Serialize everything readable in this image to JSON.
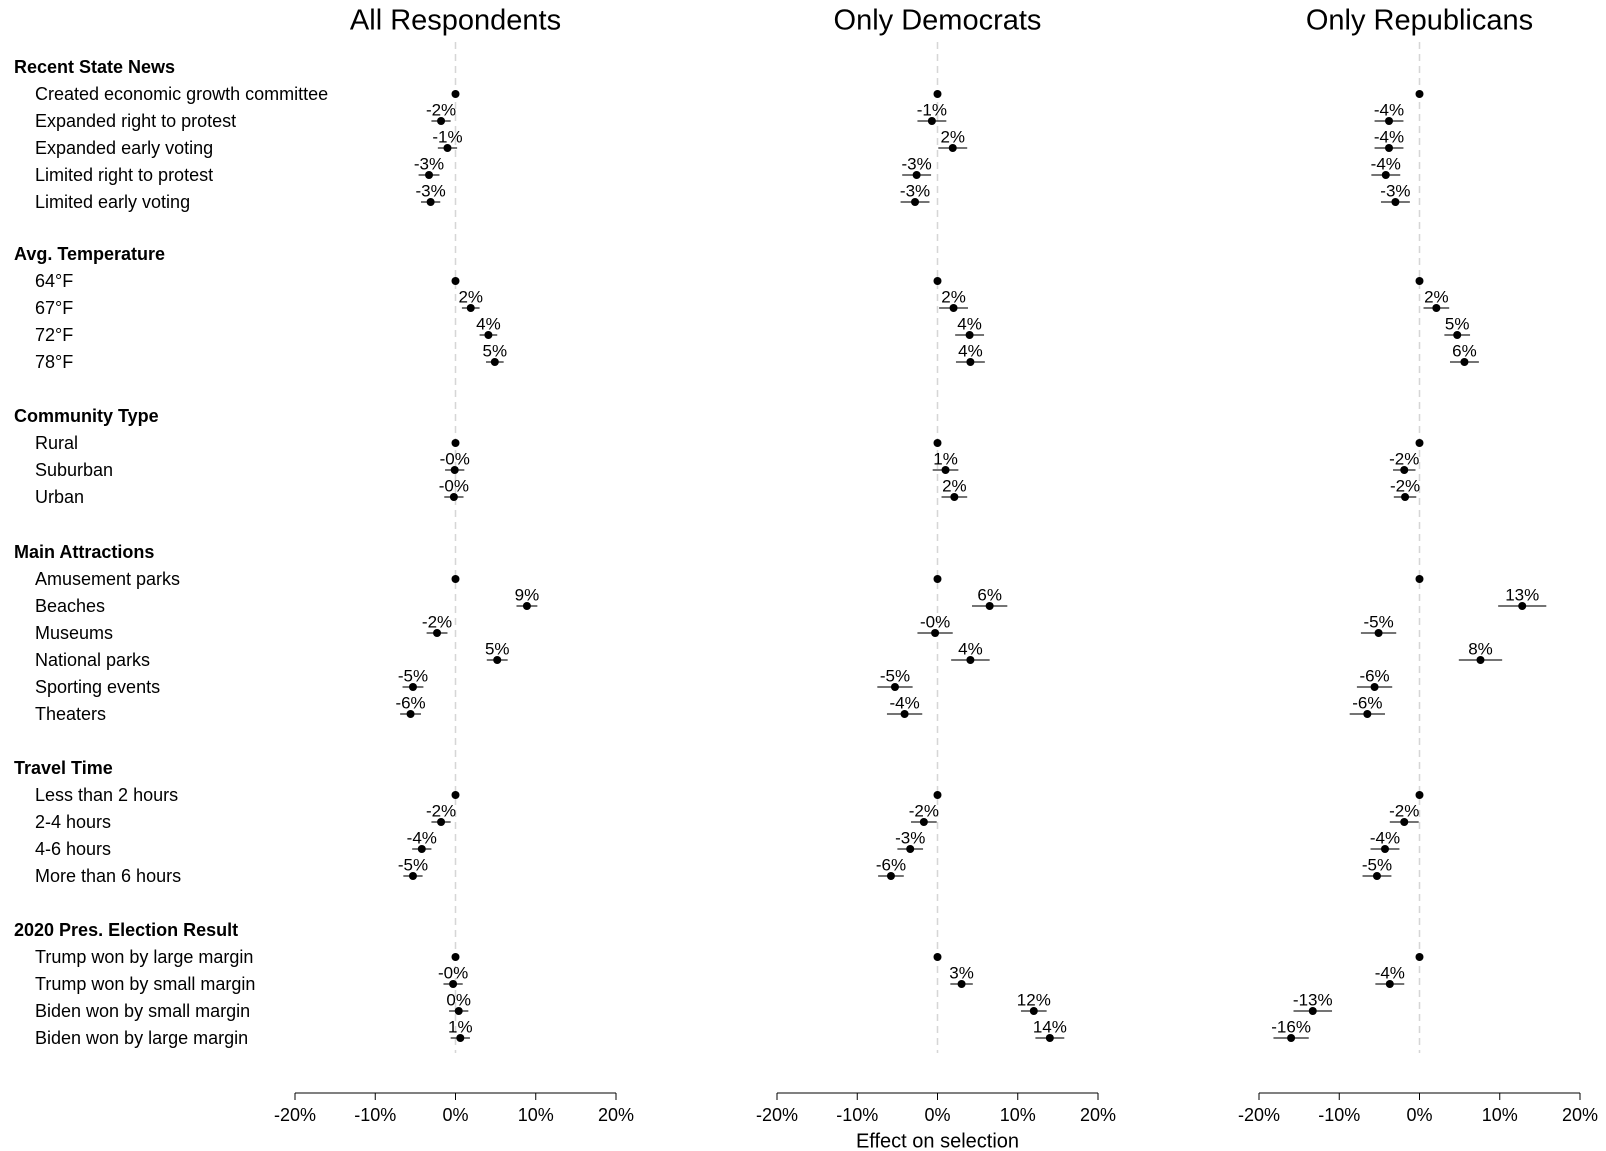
{
  "chart_data": {
    "type": "scatter",
    "description_style": "coefficient plot with 95% CI whiskers, three facets",
    "xlabel": "Effect on selection",
    "xlim": [
      -20,
      20
    ],
    "xticks": [
      -20,
      -10,
      0,
      10,
      20
    ],
    "xtick_labels": [
      "-20%",
      "-10%",
      "0%",
      "10%",
      "20%"
    ],
    "reference_line": 0,
    "grid": false,
    "groups": [
      {
        "label": "Recent State News",
        "levels": [
          "Created economic growth committee",
          "Expanded right to protest",
          "Expanded early voting",
          "Limited right to protest",
          "Limited early voting"
        ]
      },
      {
        "label": "Avg. Temperature",
        "levels": [
          "64°F",
          "67°F",
          "72°F",
          "78°F"
        ]
      },
      {
        "label": "Community Type",
        "levels": [
          "Rural",
          "Suburban",
          "Urban"
        ]
      },
      {
        "label": "Main Attractions",
        "levels": [
          "Amusement parks",
          "Beaches",
          "Museums",
          "National parks",
          "Sporting events",
          "Theaters"
        ]
      },
      {
        "label": "Travel Time",
        "levels": [
          "Less than 2 hours",
          "2-4 hours",
          "4-6 hours",
          "More than 6 hours"
        ]
      },
      {
        "label": "2020 Pres. Election Result",
        "levels": [
          "Trump won by large margin",
          "Trump won by small margin",
          "Biden won by small margin",
          "Biden won by large margin"
        ]
      }
    ],
    "panels": [
      {
        "title": "All Respondents",
        "estimates": [
          [
            0,
            -1.8,
            -1.0,
            -3.3,
            -3.1
          ],
          [
            0,
            1.9,
            4.1,
            4.9
          ],
          [
            0,
            -0.1,
            -0.2
          ],
          [
            0,
            8.9,
            -2.3,
            5.2,
            -5.3,
            -5.6
          ],
          [
            0,
            -1.8,
            -4.2,
            -5.3
          ],
          [
            0,
            -0.3,
            0.4,
            0.6
          ]
        ],
        "ci": [
          [
            null,
            [
              -3.0,
              -0.6
            ],
            [
              -2.2,
              0.2
            ],
            [
              -4.6,
              -2.0
            ],
            [
              -4.3,
              -1.9
            ]
          ],
          [
            null,
            [
              0.8,
              3.0
            ],
            [
              3.0,
              5.2
            ],
            [
              3.8,
              6.0
            ]
          ],
          [
            null,
            [
              -1.3,
              1.1
            ],
            [
              -1.4,
              1.0
            ]
          ],
          [
            null,
            [
              7.6,
              10.2
            ],
            [
              -3.6,
              -1.0
            ],
            [
              3.9,
              6.5
            ],
            [
              -6.6,
              -4.0
            ],
            [
              -6.9,
              -4.3
            ]
          ],
          [
            null,
            [
              -3.0,
              -0.6
            ],
            [
              -5.4,
              -3.0
            ],
            [
              -6.5,
              -4.1
            ]
          ],
          [
            null,
            [
              -1.5,
              0.9
            ],
            [
              -0.8,
              1.6
            ],
            [
              -0.6,
              1.8
            ]
          ]
        ],
        "labels": [
          [
            null,
            "-2%",
            "-1%",
            "-3%",
            "-3%"
          ],
          [
            null,
            "2%",
            "4%",
            "5%"
          ],
          [
            null,
            "-0%",
            "-0%"
          ],
          [
            null,
            "9%",
            "-2%",
            "5%",
            "-5%",
            "-6%"
          ],
          [
            null,
            "-2%",
            "-4%",
            "-5%"
          ],
          [
            null,
            "-0%",
            "0%",
            "1%"
          ]
        ]
      },
      {
        "title": "Only Democrats",
        "estimates": [
          [
            0,
            -0.7,
            1.9,
            -2.6,
            -2.8
          ],
          [
            0,
            2.0,
            4.0,
            4.1
          ],
          [
            0,
            1.0,
            2.1
          ],
          [
            0,
            6.5,
            -0.3,
            4.1,
            -5.3,
            -4.1
          ],
          [
            0,
            -1.7,
            -3.4,
            -5.8
          ],
          [
            0,
            3.0,
            12.0,
            14.0
          ]
        ],
        "ci": [
          [
            null,
            [
              -2.5,
              1.1
            ],
            [
              0.1,
              3.7
            ],
            [
              -4.4,
              -0.8
            ],
            [
              -4.6,
              -1.0
            ]
          ],
          [
            null,
            [
              0.2,
              3.8
            ],
            [
              2.2,
              5.8
            ],
            [
              2.3,
              5.9
            ]
          ],
          [
            null,
            [
              -0.6,
              2.6
            ],
            [
              0.5,
              3.7
            ]
          ],
          [
            null,
            [
              4.3,
              8.7
            ],
            [
              -2.5,
              1.9
            ],
            [
              1.7,
              6.5
            ],
            [
              -7.5,
              -3.1
            ],
            [
              -6.3,
              -1.9
            ]
          ],
          [
            null,
            [
              -3.3,
              -0.1
            ],
            [
              -5.0,
              -1.8
            ],
            [
              -7.4,
              -4.2
            ]
          ],
          [
            null,
            [
              1.6,
              4.4
            ],
            [
              10.4,
              13.6
            ],
            [
              12.2,
              15.8
            ]
          ]
        ],
        "labels": [
          [
            null,
            "-1%",
            "2%",
            "-3%",
            "-3%"
          ],
          [
            null,
            "2%",
            "4%",
            "4%"
          ],
          [
            null,
            "1%",
            "2%"
          ],
          [
            null,
            "6%",
            "-0%",
            "4%",
            "-5%",
            "-4%"
          ],
          [
            null,
            "-2%",
            "-3%",
            "-6%"
          ],
          [
            null,
            "3%",
            "12%",
            "14%"
          ]
        ]
      },
      {
        "title": "Only Republicans",
        "estimates": [
          [
            0,
            -3.8,
            -3.8,
            -4.2,
            -3.0
          ],
          [
            0,
            2.1,
            4.7,
            5.6
          ],
          [
            0,
            -1.9,
            -1.8
          ],
          [
            0,
            12.8,
            -5.1,
            7.6,
            -5.6,
            -6.5
          ],
          [
            0,
            -1.9,
            -4.3,
            -5.3
          ],
          [
            0,
            -3.7,
            -13.3,
            -16.0
          ]
        ],
        "ci": [
          [
            null,
            [
              -5.6,
              -2.0
            ],
            [
              -5.6,
              -2.0
            ],
            [
              -6.0,
              -2.4
            ],
            [
              -4.8,
              -1.2
            ]
          ],
          [
            null,
            [
              0.5,
              3.7
            ],
            [
              3.1,
              6.3
            ],
            [
              3.8,
              7.4
            ]
          ],
          [
            null,
            [
              -3.3,
              -0.5
            ],
            [
              -3.2,
              -0.4
            ]
          ],
          [
            null,
            [
              9.8,
              15.8
            ],
            [
              -7.3,
              -2.9
            ],
            [
              4.9,
              10.3
            ],
            [
              -7.8,
              -3.4
            ],
            [
              -8.7,
              -4.3
            ]
          ],
          [
            null,
            [
              -3.7,
              -0.1
            ],
            [
              -6.1,
              -2.5
            ],
            [
              -7.1,
              -3.5
            ]
          ],
          [
            null,
            [
              -5.5,
              -1.9
            ],
            [
              -15.7,
              -10.9
            ],
            [
              -18.2,
              -13.8
            ]
          ]
        ],
        "labels": [
          [
            null,
            "-4%",
            "-4%",
            "-4%",
            "-3%"
          ],
          [
            null,
            "2%",
            "5%",
            "6%"
          ],
          [
            null,
            "-2%",
            "-2%"
          ],
          [
            null,
            "13%",
            "-5%",
            "8%",
            "-6%",
            "-6%"
          ],
          [
            null,
            "-2%",
            "-4%",
            "-5%"
          ],
          [
            null,
            "-4%",
            "-13%",
            "-16%"
          ]
        ]
      }
    ]
  }
}
